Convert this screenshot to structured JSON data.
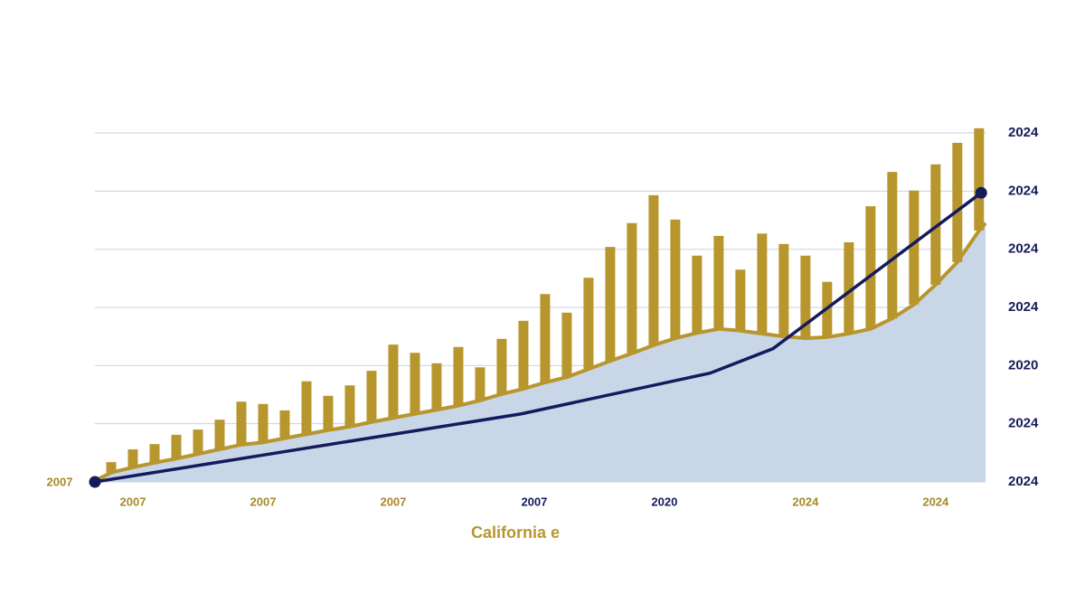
{
  "chart_data": {
    "type": "range-bar-area-line",
    "x_axis_label": "California e",
    "corner_label": "2007",
    "xlim": [
      -0.75,
      40.3
    ],
    "xticks": [
      {
        "value": 1,
        "label": "2007"
      },
      {
        "value": 7,
        "label": "2007"
      },
      {
        "value": 13,
        "label": "2007"
      },
      {
        "value": 19.5,
        "label": "2007"
      },
      {
        "value": 25.5,
        "label": "2020"
      },
      {
        "value": 32,
        "label": "2024"
      },
      {
        "value": 38,
        "label": "2024"
      }
    ],
    "y2lim": [
      0,
      6.1
    ],
    "y2ticks": [
      {
        "value": 0,
        "label": "2024"
      },
      {
        "value": 1,
        "label": "2024"
      },
      {
        "value": 2,
        "label": "2020"
      },
      {
        "value": 3,
        "label": "2024"
      },
      {
        "value": 4,
        "label": "2024"
      },
      {
        "value": 5,
        "label": "2024"
      },
      {
        "value": 6,
        "label": "2024"
      }
    ],
    "grid": true,
    "bars": {
      "color": "#b8962e",
      "x": [
        0,
        1,
        2,
        3,
        4,
        5,
        6,
        7,
        8,
        9,
        10,
        11,
        12,
        13,
        14,
        15,
        16,
        17,
        18,
        19,
        20,
        21,
        22,
        23,
        24,
        25,
        26,
        27,
        28,
        29,
        30,
        31,
        32,
        33,
        34,
        35,
        36,
        37,
        38,
        39,
        40
      ],
      "low": [
        0.16,
        0.25,
        0.33,
        0.4,
        0.48,
        0.56,
        0.64,
        0.68,
        0.75,
        0.82,
        0.89,
        0.95,
        1.03,
        1.1,
        1.17,
        1.24,
        1.31,
        1.4,
        1.51,
        1.6,
        1.71,
        1.8,
        1.94,
        2.08,
        2.21,
        2.35,
        2.47,
        2.56,
        2.63,
        2.6,
        2.55,
        2.5,
        2.47,
        2.49,
        2.55,
        2.63,
        2.81,
        3.05,
        3.39,
        3.78,
        4.32
      ],
      "high": [
        0.34,
        0.56,
        0.65,
        0.81,
        0.9,
        1.07,
        1.38,
        1.34,
        1.23,
        1.73,
        1.48,
        1.66,
        1.91,
        2.36,
        2.22,
        2.04,
        2.32,
        1.97,
        2.46,
        2.77,
        3.23,
        2.91,
        3.51,
        4.04,
        4.45,
        4.93,
        4.51,
        3.89,
        4.23,
        3.65,
        4.27,
        4.09,
        3.89,
        3.44,
        4.12,
        4.74,
        5.33,
        5.01,
        5.46,
        5.83,
        6.08
      ]
    },
    "area": {
      "color": "#c9d6e8",
      "line_color": "#b8962e",
      "x": [
        -0.75,
        0,
        1,
        2,
        3,
        4,
        5,
        6,
        7,
        8,
        9,
        10,
        11,
        12,
        13,
        14,
        15,
        16,
        17,
        18,
        19,
        20,
        21,
        22,
        23,
        24,
        25,
        26,
        27,
        28,
        29,
        30,
        31,
        32,
        33,
        34,
        35,
        36,
        37,
        38,
        39,
        40,
        40.3
      ],
      "values": [
        0.02,
        0.16,
        0.25,
        0.33,
        0.4,
        0.48,
        0.56,
        0.64,
        0.68,
        0.75,
        0.82,
        0.89,
        0.95,
        1.03,
        1.1,
        1.17,
        1.24,
        1.31,
        1.4,
        1.51,
        1.6,
        1.71,
        1.8,
        1.94,
        2.08,
        2.21,
        2.35,
        2.47,
        2.56,
        2.63,
        2.6,
        2.55,
        2.5,
        2.47,
        2.49,
        2.55,
        2.63,
        2.81,
        3.05,
        3.39,
        3.78,
        4.32,
        4.45
      ]
    },
    "line": {
      "color": "#141b5c",
      "x": [
        -0.75,
        18.9,
        27.6,
        30.5,
        40.1
      ],
      "values": [
        0,
        1.17,
        1.87,
        2.29,
        4.97
      ]
    }
  }
}
